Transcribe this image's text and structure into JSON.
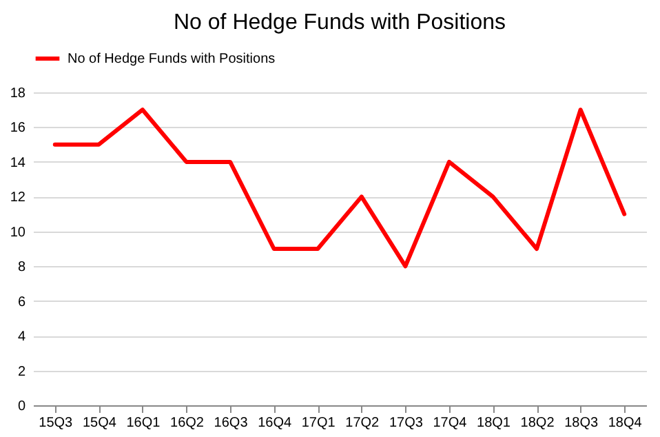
{
  "chart_data": {
    "type": "line",
    "title": "No of Hedge Funds with Positions",
    "categories": [
      "15Q3",
      "15Q4",
      "16Q1",
      "16Q2",
      "16Q3",
      "16Q4",
      "17Q1",
      "17Q2",
      "17Q3",
      "17Q4",
      "18Q1",
      "18Q2",
      "18Q3",
      "18Q4"
    ],
    "series": [
      {
        "name": "No of Hedge Funds with Positions",
        "color": "#ff0000",
        "values": [
          15,
          15,
          17,
          14,
          14,
          9,
          9,
          12,
          8,
          14,
          12,
          9,
          17,
          11
        ]
      }
    ],
    "ylim": [
      0,
      18
    ],
    "yticks": [
      0,
      2,
      4,
      6,
      8,
      10,
      12,
      14,
      16,
      18
    ],
    "grid": "y",
    "legend": "top",
    "marker": "none",
    "line_style": "solid"
  }
}
